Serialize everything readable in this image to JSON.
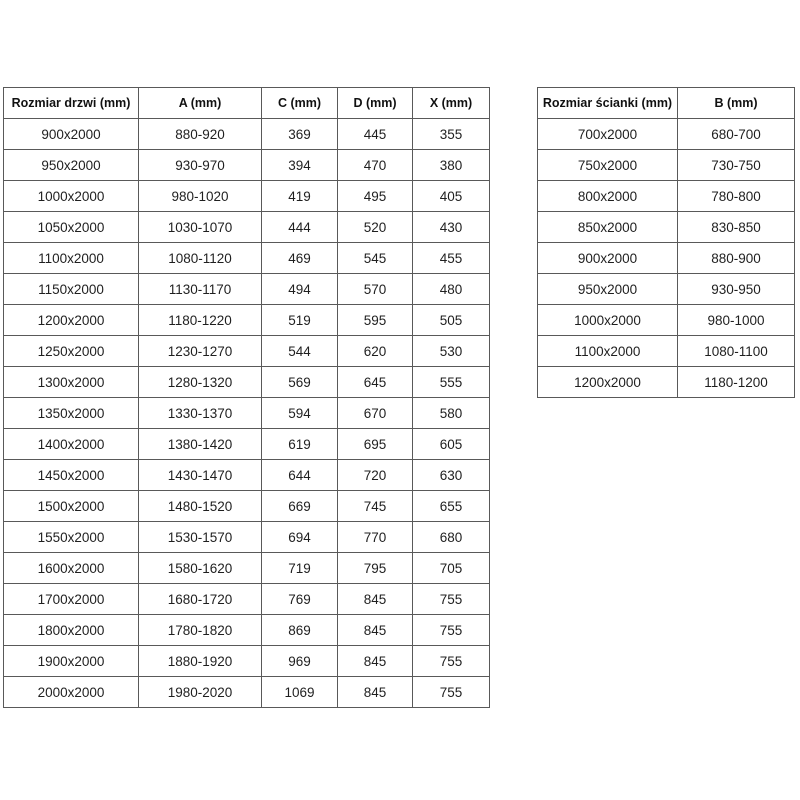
{
  "page": {
    "background_color": "#ffffff",
    "table_border_color": "#595959",
    "text_color": "#1f1f1f"
  },
  "tables": [
    {
      "name": "door-size-table",
      "headers": [
        "Rozmiar drzwi (mm)",
        "A (mm)",
        "C (mm)",
        "D (mm)",
        "X (mm)"
      ],
      "rows": [
        [
          "900x2000",
          "880-920",
          "369",
          "445",
          "355"
        ],
        [
          "950x2000",
          "930-970",
          "394",
          "470",
          "380"
        ],
        [
          "1000x2000",
          "980-1020",
          "419",
          "495",
          "405"
        ],
        [
          "1050x2000",
          "1030-1070",
          "444",
          "520",
          "430"
        ],
        [
          "1100x2000",
          "1080-1120",
          "469",
          "545",
          "455"
        ],
        [
          "1150x2000",
          "1130-1170",
          "494",
          "570",
          "480"
        ],
        [
          "1200x2000",
          "1180-1220",
          "519",
          "595",
          "505"
        ],
        [
          "1250x2000",
          "1230-1270",
          "544",
          "620",
          "530"
        ],
        [
          "1300x2000",
          "1280-1320",
          "569",
          "645",
          "555"
        ],
        [
          "1350x2000",
          "1330-1370",
          "594",
          "670",
          "580"
        ],
        [
          "1400x2000",
          "1380-1420",
          "619",
          "695",
          "605"
        ],
        [
          "1450x2000",
          "1430-1470",
          "644",
          "720",
          "630"
        ],
        [
          "1500x2000",
          "1480-1520",
          "669",
          "745",
          "655"
        ],
        [
          "1550x2000",
          "1530-1570",
          "694",
          "770",
          "680"
        ],
        [
          "1600x2000",
          "1580-1620",
          "719",
          "795",
          "705"
        ],
        [
          "1700x2000",
          "1680-1720",
          "769",
          "845",
          "755"
        ],
        [
          "1800x2000",
          "1780-1820",
          "869",
          "845",
          "755"
        ],
        [
          "1900x2000",
          "1880-1920",
          "969",
          "845",
          "755"
        ],
        [
          "2000x2000",
          "1980-2020",
          "1069",
          "845",
          "755"
        ]
      ]
    },
    {
      "name": "wall-size-table",
      "headers": [
        "Rozmiar ścianki (mm)",
        "B (mm)"
      ],
      "rows": [
        [
          "700x2000",
          "680-700"
        ],
        [
          "750x2000",
          "730-750"
        ],
        [
          "800x2000",
          "780-800"
        ],
        [
          "850x2000",
          "830-850"
        ],
        [
          "900x2000",
          "880-900"
        ],
        [
          "950x2000",
          "930-950"
        ],
        [
          "1000x2000",
          "980-1000"
        ],
        [
          "1100x2000",
          "1080-1100"
        ],
        [
          "1200x2000",
          "1180-1200"
        ]
      ]
    }
  ]
}
